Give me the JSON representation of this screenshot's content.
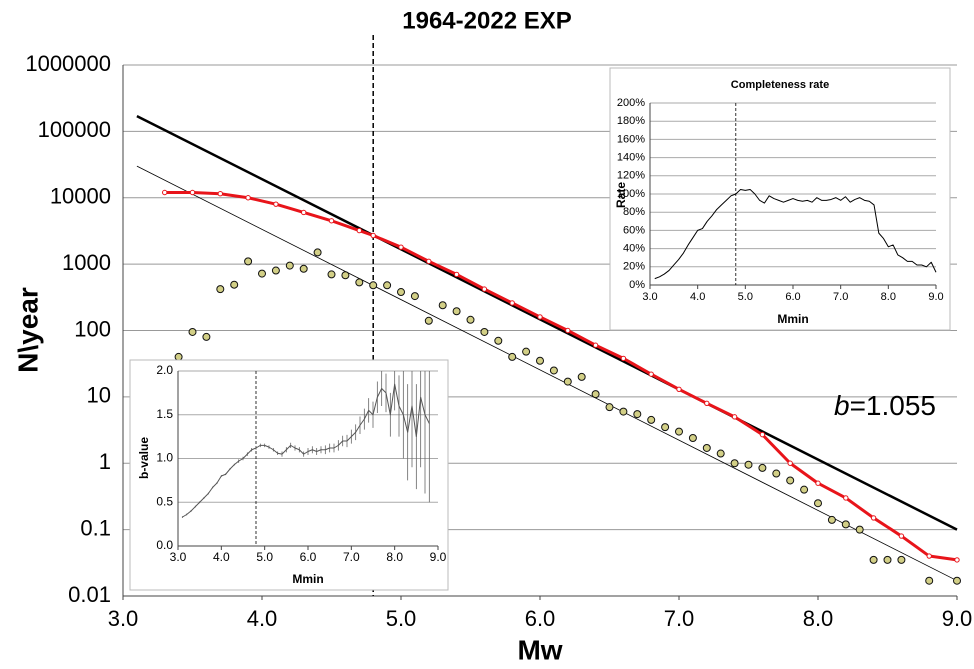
{
  "chart_data": [
    {
      "type": "line",
      "title": "1964-2022 EXP",
      "xlabel": "Mw",
      "ylabel": "N\\year",
      "log": true,
      "grid": true,
      "xlim": [
        3.0,
        9.0
      ],
      "ylim": [
        0.01,
        1000000
      ],
      "xticks": [
        {
          "value": 3.0,
          "label": "3.0"
        },
        {
          "value": 4.0,
          "label": "4.0"
        },
        {
          "value": 5.0,
          "label": "5.0"
        },
        {
          "value": 6.0,
          "label": "6.0"
        },
        {
          "value": 7.0,
          "label": "7.0"
        },
        {
          "value": 8.0,
          "label": "8.0"
        },
        {
          "value": 9.0,
          "label": "9.0"
        }
      ],
      "yticks": [
        0.01,
        0.1,
        1,
        10,
        100,
        1000,
        10000,
        100000,
        1000000
      ],
      "vline": 4.8,
      "annotation": {
        "symbol": "b",
        "text": "=1.055"
      },
      "series": [
        {
          "style": "line",
          "color": "#000000",
          "width": 2.5,
          "x": [
            3.1,
            9.0
          ],
          "values": [
            170000,
            0.1
          ]
        },
        {
          "style": "line",
          "color": "#000000",
          "width": 0.8,
          "x": [
            3.1,
            9.0
          ],
          "values": [
            30000,
            0.017
          ]
        },
        {
          "style": "circles",
          "color": "#e8141a",
          "x": [
            3.3,
            3.5,
            3.7,
            3.9,
            4.1,
            4.3,
            4.5,
            4.7,
            4.8,
            5.0,
            5.2,
            5.4,
            5.6,
            5.8,
            6.0,
            6.2,
            6.4,
            6.6,
            6.8,
            7.0,
            7.2,
            7.4,
            7.6,
            7.8,
            8.0,
            8.2,
            8.4,
            8.6,
            8.8,
            9.0
          ],
          "values": [
            12000,
            12000,
            11500,
            10000,
            8000,
            6000,
            4500,
            3200,
            2700,
            1800,
            1100,
            700,
            420,
            260,
            160,
            100,
            60,
            38,
            22,
            13,
            8,
            5,
            2.7,
            1.0,
            0.5,
            0.3,
            0.15,
            0.08,
            0.04,
            0.035
          ]
        },
        {
          "style": "markers",
          "color": "#d2cf86",
          "x": [
            3.4,
            3.5,
            3.6,
            3.7,
            3.8,
            3.9,
            4.0,
            4.1,
            4.2,
            4.3,
            4.4,
            4.5,
            4.6,
            4.7,
            4.8,
            4.9,
            5.0,
            5.1,
            5.2,
            5.3,
            5.4,
            5.5,
            5.6,
            5.7,
            5.8,
            5.9,
            6.0,
            6.1,
            6.2,
            6.3,
            6.4,
            6.5,
            6.6,
            6.7,
            6.8,
            6.9,
            7.0,
            7.1,
            7.2,
            7.3,
            7.4,
            7.5,
            7.6,
            7.7,
            7.8,
            7.9,
            8.0,
            8.1,
            8.2,
            8.3,
            8.4,
            8.5,
            8.6,
            8.8,
            9.0
          ],
          "values": [
            40,
            95,
            80,
            420,
            490,
            1100,
            720,
            800,
            950,
            850,
            1500,
            700,
            680,
            530,
            480,
            480,
            380,
            330,
            140,
            240,
            195,
            145,
            95,
            70,
            40,
            48,
            35,
            25,
            17,
            20,
            11,
            7,
            6,
            5.5,
            4.5,
            3.5,
            3,
            2.4,
            1.7,
            1.4,
            1.0,
            0.95,
            0.85,
            0.7,
            0.55,
            0.4,
            0.25,
            0.14,
            0.12,
            0.1,
            0.035,
            0.035,
            0.035,
            0.017,
            0.017
          ]
        }
      ]
    },
    {
      "type": "line",
      "xlabel": "Mmin",
      "ylabel": "b-value",
      "grid": true,
      "xlim": [
        3.0,
        9.0
      ],
      "ylim": [
        0.0,
        2.0
      ],
      "xticks": [
        {
          "value": 3.0,
          "label": "3.0"
        },
        {
          "value": 4.0,
          "label": "4.0"
        },
        {
          "value": 5.0,
          "label": "5.0"
        },
        {
          "value": 6.0,
          "label": "6.0"
        },
        {
          "value": 7.0,
          "label": "7.0"
        },
        {
          "value": 8.0,
          "label": "8.0"
        },
        {
          "value": 9.0,
          "label": "9.0"
        }
      ],
      "yticks": [
        {
          "value": 0.0,
          "label": "0.0"
        },
        {
          "value": 0.5,
          "label": "0.5"
        },
        {
          "value": 1.0,
          "label": "1.0"
        },
        {
          "value": 1.5,
          "label": "1.5"
        },
        {
          "value": 2.0,
          "label": "2.0"
        }
      ],
      "vline": 4.8,
      "series": [
        {
          "style": "line",
          "color": "#555555",
          "width": 1,
          "x": [
            3.1,
            3.2,
            3.3,
            3.4,
            3.5,
            3.6,
            3.7,
            3.8,
            3.9,
            4.0,
            4.1,
            4.2,
            4.3,
            4.4,
            4.5,
            4.6,
            4.7,
            4.8,
            4.9,
            5.0,
            5.1,
            5.2,
            5.3,
            5.4,
            5.5,
            5.6,
            5.7,
            5.8,
            5.9,
            6.0,
            6.1,
            6.2,
            6.3,
            6.4,
            6.5,
            6.6,
            6.7,
            6.8,
            6.9,
            7.0,
            7.1,
            7.2,
            7.3,
            7.4,
            7.5,
            7.6,
            7.7,
            7.8,
            7.9,
            8.0,
            8.1,
            8.2,
            8.3,
            8.4,
            8.5,
            8.6,
            8.7,
            8.8
          ],
          "values": [
            0.33,
            0.36,
            0.4,
            0.45,
            0.5,
            0.55,
            0.6,
            0.67,
            0.72,
            0.8,
            0.82,
            0.88,
            0.93,
            0.97,
            1.0,
            1.05,
            1.1,
            1.12,
            1.15,
            1.15,
            1.13,
            1.1,
            1.06,
            1.05,
            1.1,
            1.15,
            1.12,
            1.1,
            1.05,
            1.08,
            1.1,
            1.08,
            1.1,
            1.1,
            1.12,
            1.12,
            1.15,
            1.2,
            1.2,
            1.25,
            1.3,
            1.38,
            1.45,
            1.55,
            1.5,
            1.7,
            1.8,
            1.75,
            1.5,
            1.85,
            1.6,
            1.5,
            1.3,
            1.6,
            1.25,
            1.7,
            1.5,
            1.4
          ],
          "errors": [
            0.01,
            0.01,
            0.01,
            0.01,
            0.01,
            0.01,
            0.01,
            0.01,
            0.01,
            0.01,
            0.01,
            0.01,
            0.01,
            0.02,
            0.02,
            0.02,
            0.02,
            0.02,
            0.02,
            0.02,
            0.02,
            0.02,
            0.02,
            0.03,
            0.03,
            0.03,
            0.03,
            0.03,
            0.03,
            0.04,
            0.04,
            0.04,
            0.04,
            0.05,
            0.05,
            0.05,
            0.06,
            0.06,
            0.07,
            0.08,
            0.09,
            0.1,
            0.12,
            0.14,
            0.15,
            0.18,
            0.2,
            0.22,
            0.25,
            0.3,
            0.35,
            0.5,
            0.55,
            0.7,
            0.6,
            0.8,
            0.9,
            0.9
          ]
        }
      ]
    },
    {
      "type": "line",
      "title": "Completeness rate",
      "xlabel": "Mmin",
      "ylabel": "Rate",
      "grid": true,
      "xlim": [
        3.0,
        9.0
      ],
      "ylim": [
        0,
        200
      ],
      "xticks": [
        {
          "value": 3.0,
          "label": "3.0"
        },
        {
          "value": 4.0,
          "label": "4.0"
        },
        {
          "value": 5.0,
          "label": "5.0"
        },
        {
          "value": 6.0,
          "label": "6.0"
        },
        {
          "value": 7.0,
          "label": "7.0"
        },
        {
          "value": 8.0,
          "label": "8.0"
        },
        {
          "value": 9.0,
          "label": "9.0"
        }
      ],
      "yticks": [
        {
          "value": 0,
          "label": "0%"
        },
        {
          "value": 20,
          "label": "20%"
        },
        {
          "value": 40,
          "label": "40%"
        },
        {
          "value": 60,
          "label": "60%"
        },
        {
          "value": 80,
          "label": "80%"
        },
        {
          "value": 100,
          "label": "100%"
        },
        {
          "value": 120,
          "label": "120%"
        },
        {
          "value": 140,
          "label": "140%"
        },
        {
          "value": 160,
          "label": "160%"
        },
        {
          "value": 180,
          "label": "180%"
        },
        {
          "value": 200,
          "label": "200%"
        }
      ],
      "vline": 4.8,
      "series": [
        {
          "style": "line",
          "color": "#000000",
          "width": 1,
          "x": [
            3.1,
            3.2,
            3.3,
            3.4,
            3.5,
            3.6,
            3.7,
            3.8,
            3.9,
            4.0,
            4.1,
            4.2,
            4.3,
            4.4,
            4.5,
            4.6,
            4.7,
            4.8,
            4.9,
            5.0,
            5.1,
            5.2,
            5.3,
            5.4,
            5.5,
            5.6,
            5.7,
            5.8,
            5.9,
            6.0,
            6.1,
            6.2,
            6.3,
            6.4,
            6.5,
            6.6,
            6.7,
            6.8,
            6.9,
            7.0,
            7.1,
            7.2,
            7.3,
            7.4,
            7.5,
            7.6,
            7.7,
            7.8,
            7.9,
            8.0,
            8.1,
            8.2,
            8.3,
            8.4,
            8.5,
            8.6,
            8.7,
            8.8,
            8.9,
            9.0
          ],
          "values": [
            7,
            9,
            12,
            16,
            22,
            28,
            35,
            44,
            52,
            60,
            62,
            70,
            76,
            83,
            88,
            93,
            98,
            100,
            105,
            104,
            105,
            100,
            93,
            90,
            98,
            95,
            93,
            91,
            93,
            95,
            93,
            92,
            93,
            91,
            96,
            93,
            93,
            94,
            96,
            93,
            97,
            91,
            94,
            96,
            93,
            92,
            88,
            57,
            51,
            42,
            44,
            33,
            30,
            26,
            26,
            22,
            22,
            20,
            25,
            14
          ]
        }
      ]
    }
  ]
}
